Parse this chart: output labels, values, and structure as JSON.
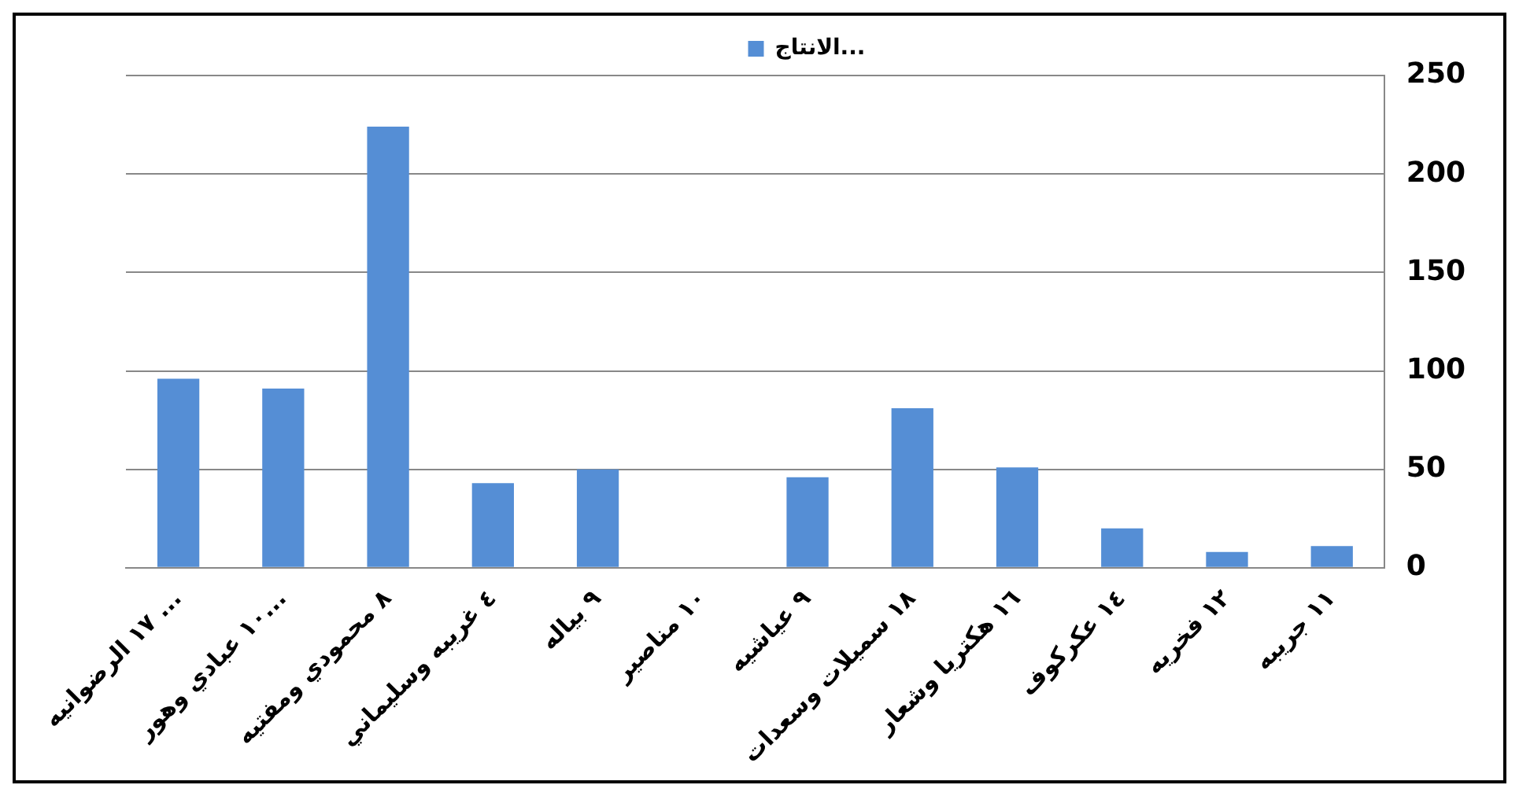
{
  "chart_data": {
    "type": "bar",
    "categories": [
      "١٧ الرضوانيه ...",
      "١٠ عبادي وهور...",
      "٨ محمودي ومفتيه",
      "٤ غريبه وسليماني",
      "٩ بياله",
      "١٠ مناصير",
      "٩ عياشيه",
      "١٨ سميلات وسعدات",
      "١٦ هكتريا وشعار",
      "١٤ عكركوف",
      "١٢ فخريه",
      "١١ جريبه"
    ],
    "series": [
      {
        "name": "الانتاج...",
        "color": "#558ed5",
        "values": [
          96,
          91,
          224,
          43,
          50,
          0,
          46,
          81,
          51,
          20,
          8,
          11
        ]
      }
    ],
    "ylim": [
      0,
      250
    ],
    "yticks": [
      0,
      50,
      100,
      150,
      200,
      250
    ],
    "grid": "y",
    "legend": "top"
  }
}
